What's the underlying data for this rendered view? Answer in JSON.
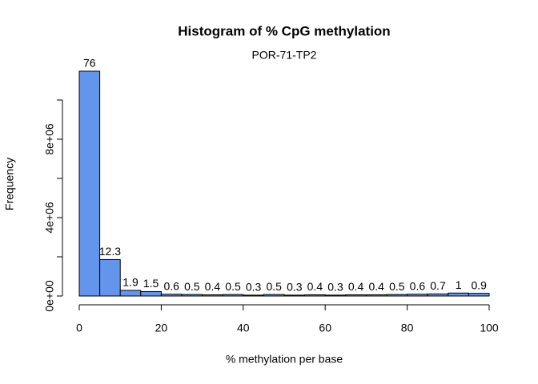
{
  "chart_data": {
    "type": "histogram",
    "title": "Histogram of % CpG methylation",
    "subtitle": "POR-71-TP2",
    "x_label": "% methylation per base",
    "y_label": "Frequency",
    "bins": [
      0,
      5,
      10,
      15,
      20,
      25,
      30,
      35,
      40,
      45,
      50,
      55,
      60,
      65,
      70,
      75,
      80,
      85,
      90,
      95,
      100
    ],
    "values": [
      11470000,
      1860000,
      287000,
      227000,
      91000,
      76000,
      60000,
      76000,
      45000,
      76000,
      45000,
      60000,
      45000,
      60000,
      60000,
      76000,
      91000,
      106000,
      151000,
      136000
    ],
    "percent_labels": [
      76,
      12.3,
      1.9,
      1.5,
      0.6,
      0.5,
      0.4,
      0.5,
      0.3,
      0.5,
      0.3,
      0.4,
      0.3,
      0.4,
      0.4,
      0.5,
      0.6,
      0.7,
      1,
      0.9
    ],
    "color": "#6495ed",
    "xlim": [
      0,
      100
    ],
    "xticks": [
      0,
      20,
      40,
      60,
      80,
      100
    ],
    "ylim": [
      0,
      10000000
    ],
    "yticks": [
      {
        "value": 0,
        "label": "0e+00"
      },
      {
        "value": 4000000,
        "label": "4e+06"
      },
      {
        "value": 8000000,
        "label": "8e+06"
      }
    ],
    "yticks_minor": [
      2000000,
      6000000,
      10000000
    ]
  }
}
